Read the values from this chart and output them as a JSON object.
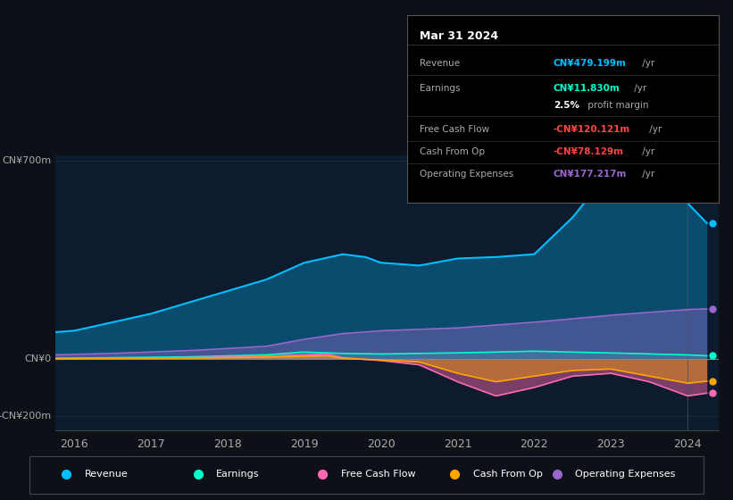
{
  "background_color": "#0d1117",
  "chart_bg_color": "#0d1b2e",
  "ylabel_top": "CN¥700m",
  "ylabel_mid": "CN¥0",
  "ylabel_bot": "-CN¥200m",
  "colors": {
    "revenue": "#00bfff",
    "earnings": "#00ffcc",
    "free_cash_flow": "#ff69b4",
    "cash_from_op": "#ffa500",
    "operating_expenses": "#9966cc"
  },
  "legend": [
    {
      "label": "Revenue",
      "color": "#00bfff"
    },
    {
      "label": "Earnings",
      "color": "#00ffcc"
    },
    {
      "label": "Free Cash Flow",
      "color": "#ff69b4"
    },
    {
      "label": "Cash From Op",
      "color": "#ffa500"
    },
    {
      "label": "Operating Expenses",
      "color": "#9966cc"
    }
  ],
  "tooltip_title": "Mar 31 2024",
  "tooltip_rows": [
    {
      "label": "Revenue",
      "value": "CN¥479.199m",
      "suffix": " /yr",
      "value_color": "#00bfff",
      "bold": true,
      "sublabel": ""
    },
    {
      "label": "Earnings",
      "value": "CN¥11.830m",
      "suffix": " /yr",
      "value_color": "#00ffcc",
      "bold": true,
      "sublabel": ""
    },
    {
      "label": "",
      "value": "2.5%",
      "suffix": " profit margin",
      "value_color": "#ffffff",
      "bold": true,
      "sublabel": ""
    },
    {
      "label": "Free Cash Flow",
      "value": "-CN¥120.121m",
      "suffix": " /yr",
      "value_color": "#ff4444",
      "bold": true,
      "sublabel": ""
    },
    {
      "label": "Cash From Op",
      "value": "-CN¥78.129m",
      "suffix": " /yr",
      "value_color": "#ff4444",
      "bold": true,
      "sublabel": ""
    },
    {
      "label": "Operating Expenses",
      "value": "CN¥177.217m",
      "suffix": " /yr",
      "value_color": "#9966cc",
      "bold": true,
      "sublabel": ""
    }
  ]
}
